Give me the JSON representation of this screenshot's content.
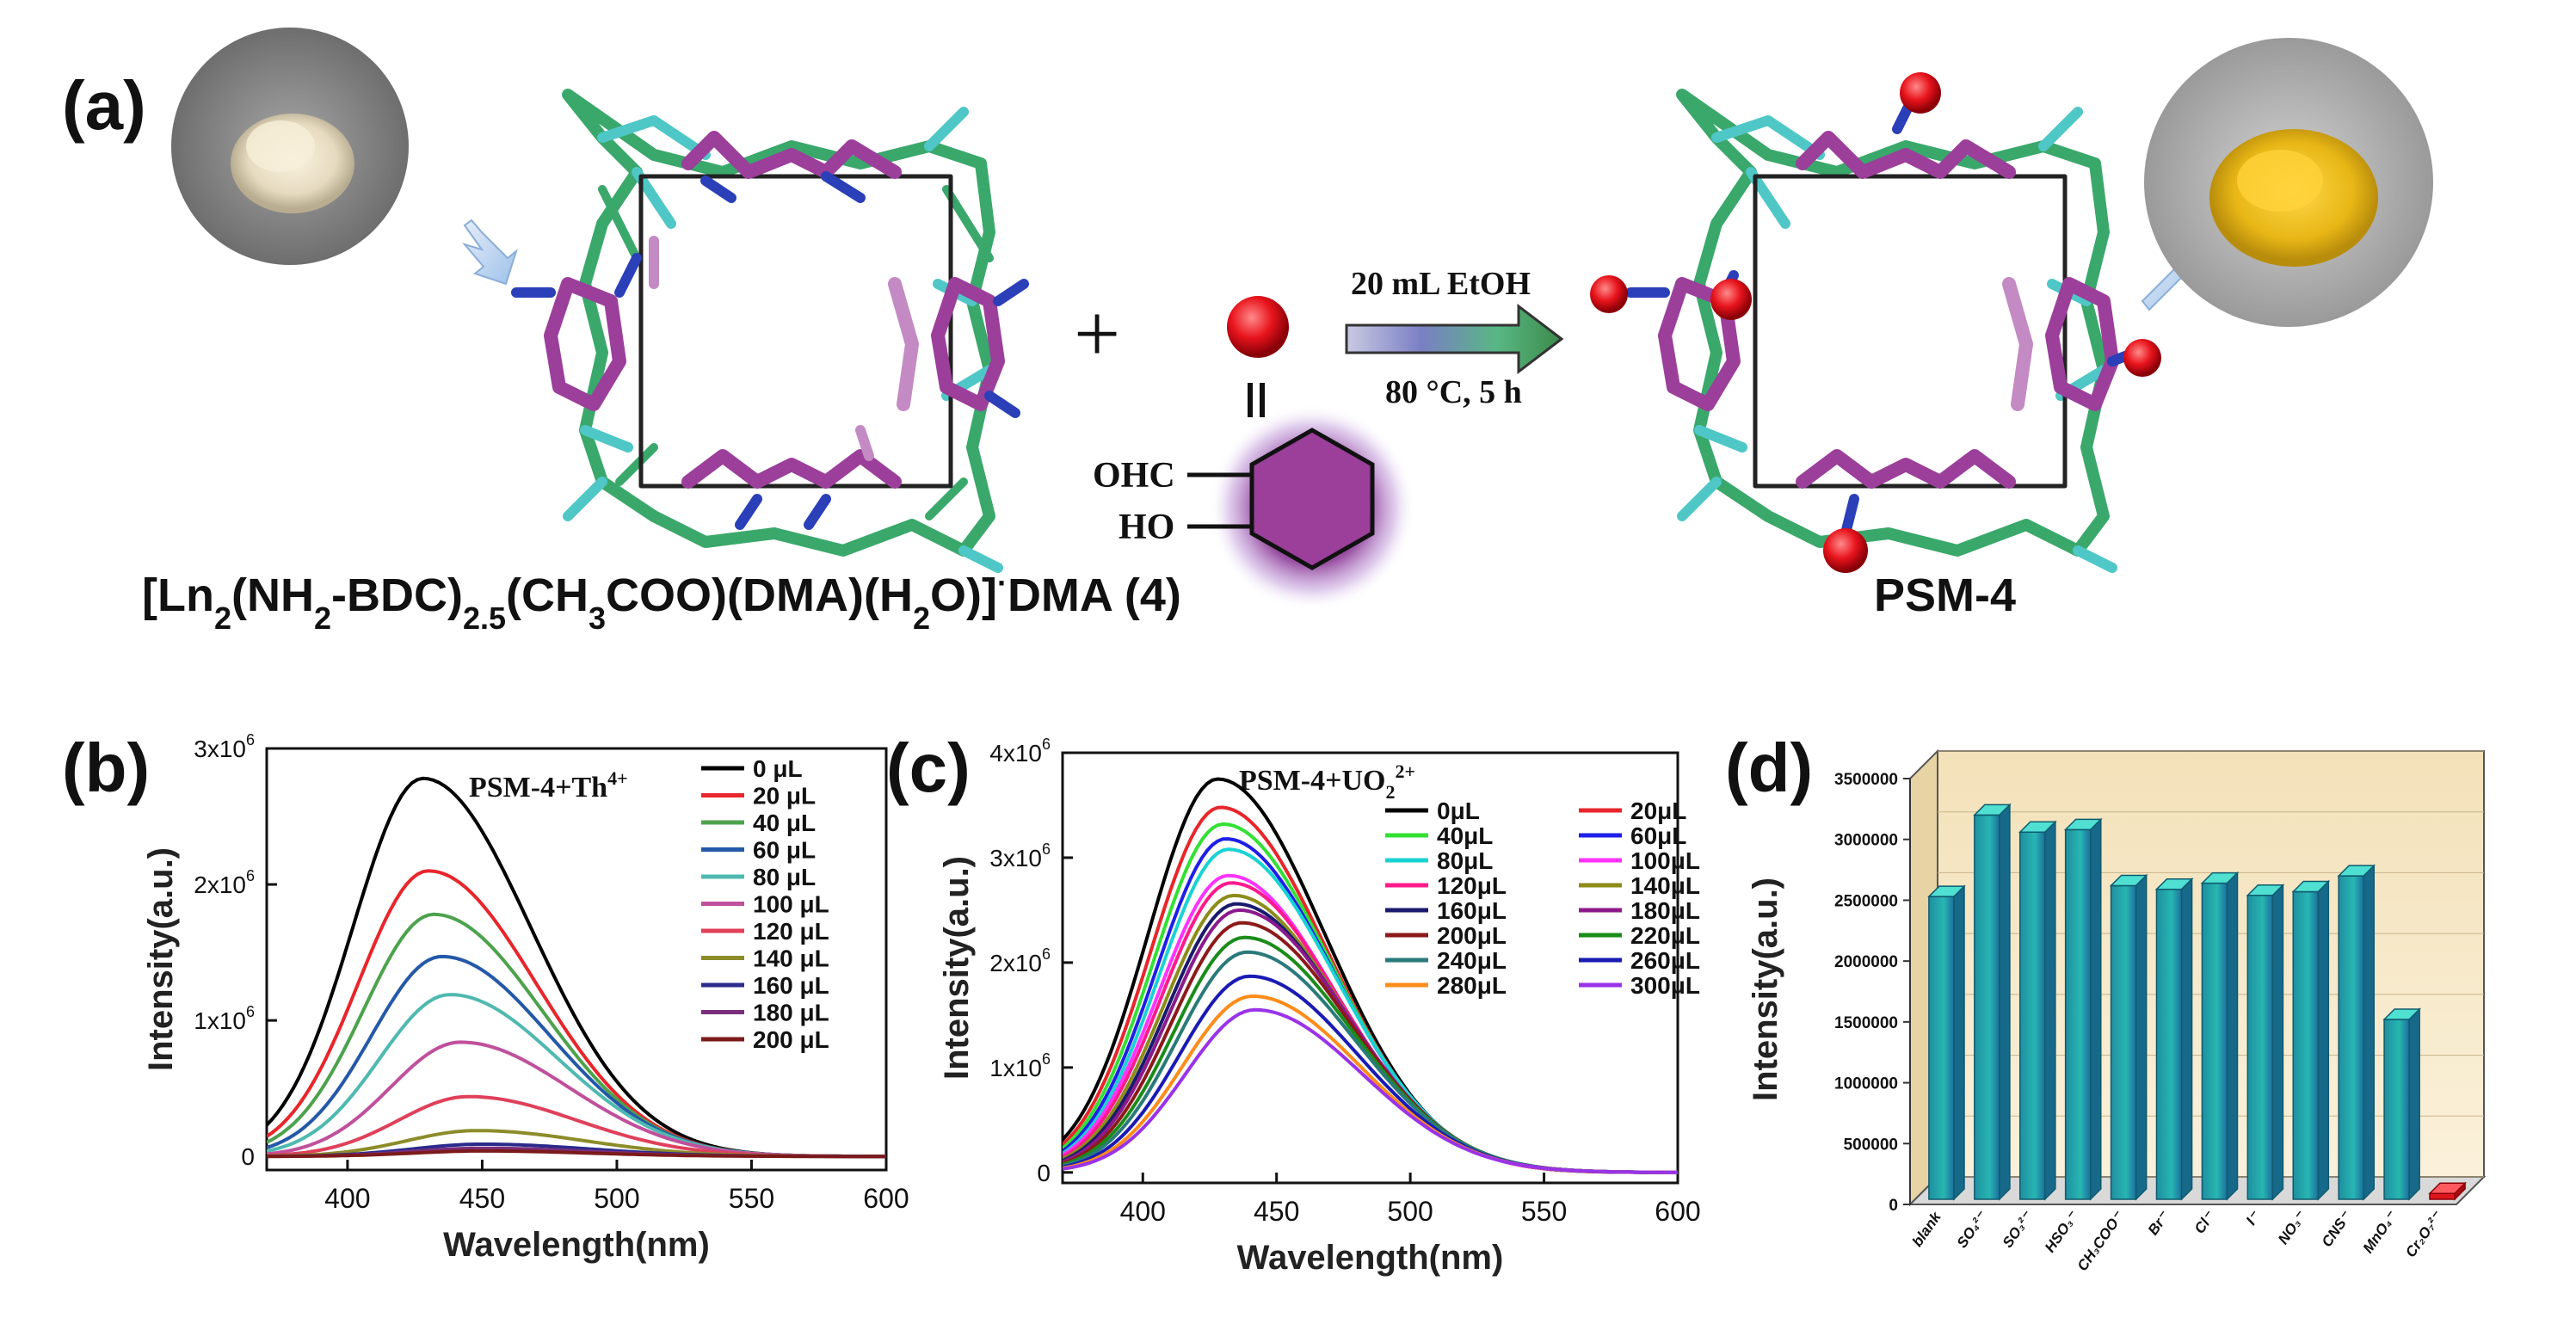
{
  "panel_a": {
    "label": "(a)",
    "formula_parts": [
      "[Ln",
      "2",
      "(NH",
      "2",
      "-BDC)",
      "2.5",
      "(CH",
      "3",
      "COO)(DMA)(H",
      "2",
      "O)]",
      "·",
      "DMA (4)"
    ],
    "product_label": "PSM-4",
    "reagent_aldehyde": "OHC",
    "reagent_hydroxyl": "HO",
    "condition_top": "20 mL  EtOH",
    "condition_bottom": "80 °C, 5 h",
    "plus_sign": "+",
    "colors": {
      "purple": "#9b3f9b",
      "green": "#3aa86b",
      "cyan": "#4fc7c7",
      "blue": "#2a3fb8",
      "red": "#e8141c",
      "yellow_powder": "#e8c22a",
      "beige_powder": "#e9dfc8"
    }
  },
  "chart_data": [
    {
      "id": "b",
      "panel_label": "(b)",
      "type": "line",
      "title": "PSM-4+Th4+",
      "title_main": "PSM-4+Th",
      "title_sup": "4+",
      "xlabel": "Wavelength(nm)",
      "ylabel": "Intensity(a.u.)",
      "xlim": [
        370,
        600
      ],
      "ylim": [
        -100000,
        3000000
      ],
      "xticks": [
        "400",
        "450",
        "500",
        "550",
        "600"
      ],
      "xtick_values": [
        400,
        450,
        500,
        550,
        600
      ],
      "yticks": [
        {
          "value": 0,
          "base": "0",
          "exp": ""
        },
        {
          "value": 1000000,
          "base": "1x10",
          "exp": "6"
        },
        {
          "value": 2000000,
          "base": "2x10",
          "exp": "6"
        },
        {
          "value": 3000000,
          "base": "3x10",
          "exp": "6"
        }
      ],
      "legend_columns": 1,
      "series": [
        {
          "name": "0 μL",
          "color": "#000000",
          "peak": 428,
          "max": 2780000
        },
        {
          "name": "20 μL",
          "color": "#e8262b",
          "peak": 430,
          "max": 2100000
        },
        {
          "name": "40 μL",
          "color": "#4da24d",
          "peak": 432,
          "max": 1780000
        },
        {
          "name": "60 μL",
          "color": "#2458a8",
          "peak": 435,
          "max": 1470000
        },
        {
          "name": "80 μL",
          "color": "#4fb9b0",
          "peak": 438,
          "max": 1190000
        },
        {
          "name": "100 μL",
          "color": "#c0509c",
          "peak": 442,
          "max": 840000
        },
        {
          "name": "120 μL",
          "color": "#e0405a",
          "peak": 445,
          "max": 440000
        },
        {
          "name": "140 μL",
          "color": "#8c8c2a",
          "peak": 448,
          "max": 190000
        },
        {
          "name": "160 μL",
          "color": "#2b2b8c",
          "peak": 450,
          "max": 90000
        },
        {
          "name": "180 μL",
          "color": "#7b2e7b",
          "peak": 450,
          "max": 60000
        },
        {
          "name": "200 μL",
          "color": "#7b1a1a",
          "peak": 450,
          "max": 40000
        }
      ]
    },
    {
      "id": "c",
      "panel_label": "(c)",
      "type": "line",
      "title": "PSM-4+UO22+",
      "title_main": "PSM-4+UO",
      "title_sub": "2",
      "title_sup": "2+",
      "xlabel": "Wavelength(nm)",
      "ylabel": "Intensity(a.u.)",
      "xlim": [
        370,
        600
      ],
      "ylim": [
        -100000,
        4000000
      ],
      "xticks": [
        "400",
        "450",
        "500",
        "550",
        "600"
      ],
      "xtick_values": [
        400,
        450,
        500,
        550,
        600
      ],
      "yticks": [
        {
          "value": 0,
          "base": "0",
          "exp": ""
        },
        {
          "value": 1000000,
          "base": "1x10",
          "exp": "6"
        },
        {
          "value": 2000000,
          "base": "2x10",
          "exp": "6"
        },
        {
          "value": 3000000,
          "base": "3x10",
          "exp": "6"
        },
        {
          "value": 4000000,
          "base": "4x10",
          "exp": "6"
        }
      ],
      "legend_columns": 2,
      "series": [
        {
          "name": "0μL",
          "color": "#000000",
          "peak": 428,
          "max": 3750000
        },
        {
          "name": "20μL",
          "color": "#e8262b",
          "peak": 429,
          "max": 3480000
        },
        {
          "name": "40μL",
          "color": "#33e033",
          "peak": 430,
          "max": 3320000
        },
        {
          "name": "60μL",
          "color": "#1f1fe8",
          "peak": 431,
          "max": 3180000
        },
        {
          "name": "80μL",
          "color": "#19d3d3",
          "peak": 432,
          "max": 3080000
        },
        {
          "name": "100μL",
          "color": "#ff33ff",
          "peak": 432,
          "max": 2830000
        },
        {
          "name": "120μL",
          "color": "#ff1a8c",
          "peak": 433,
          "max": 2760000
        },
        {
          "name": "140μL",
          "color": "#8c8c1a",
          "peak": 434,
          "max": 2640000
        },
        {
          "name": "160μL",
          "color": "#1a1a6e",
          "peak": 435,
          "max": 2560000
        },
        {
          "name": "180μL",
          "color": "#8c1a8c",
          "peak": 436,
          "max": 2500000
        },
        {
          "name": "200μL",
          "color": "#8c1a1a",
          "peak": 437,
          "max": 2380000
        },
        {
          "name": "220μL",
          "color": "#1a8c1a",
          "peak": 438,
          "max": 2240000
        },
        {
          "name": "240μL",
          "color": "#2a7a7a",
          "peak": 439,
          "max": 2100000
        },
        {
          "name": "260μL",
          "color": "#1a1ab4",
          "peak": 440,
          "max": 1870000
        },
        {
          "name": "280μL",
          "color": "#ff8c1a",
          "peak": 441,
          "max": 1680000
        },
        {
          "name": "300μL",
          "color": "#9a33e8",
          "peak": 442,
          "max": 1550000
        }
      ]
    },
    {
      "id": "d",
      "panel_label": "(d)",
      "type": "bar",
      "xlabel": "",
      "ylabel": "Intensity(a.u.)",
      "ylim": [
        0,
        3500000
      ],
      "yticks": [
        "0",
        "500000",
        "1000000",
        "1500000",
        "2000000",
        "2500000",
        "3000000",
        "3500000"
      ],
      "ytick_values": [
        0,
        500000,
        1000000,
        1500000,
        2000000,
        2500000,
        3000000,
        3500000
      ],
      "categories": [
        "blank",
        "SO₄²⁻",
        "SO₃²⁻",
        "HSO₃⁻",
        "CH₃COO⁻",
        "Br⁻",
        "Cl⁻",
        "I⁻",
        "NO₃⁻",
        "CNS⁻",
        "MnO₄⁻",
        "Cr₂O₇²⁻"
      ],
      "values": [
        2530000,
        3200000,
        3060000,
        3080000,
        2620000,
        2590000,
        2640000,
        2540000,
        2570000,
        2700000,
        1520000,
        90000
      ],
      "bar_colors": [
        "#27b6b2",
        "#27b6b2",
        "#27b6b2",
        "#27b6b2",
        "#27b6b2",
        "#27b6b2",
        "#27b6b2",
        "#27b6b2",
        "#27b6b2",
        "#27b6b2",
        "#27b6b2",
        "#e0141c"
      ]
    }
  ]
}
